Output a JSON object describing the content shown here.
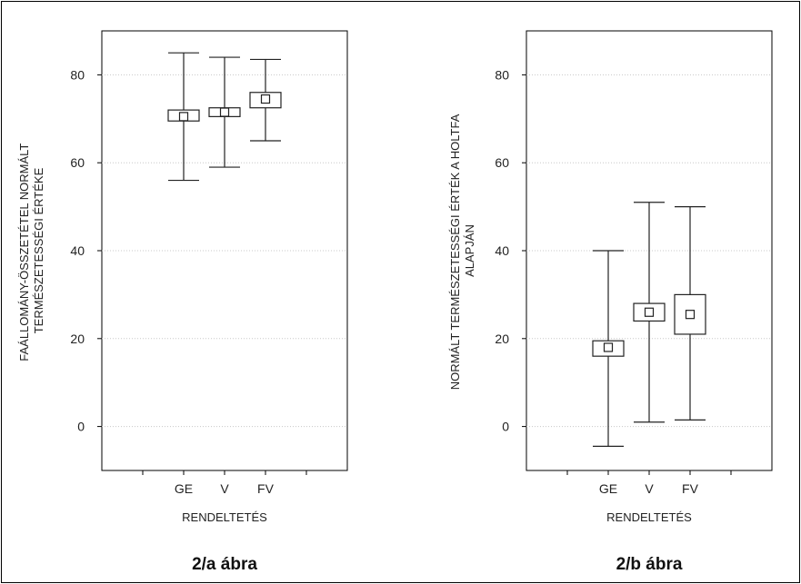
{
  "chart_data": [
    {
      "type": "boxplot",
      "xlabel": "RENDELTETÉS",
      "ylabel_lines": [
        "FAÁLLOMÁNY-ÖSSZETÉTEL NORMÁLT",
        "TERMÉSZETESSÉGI ÉRTÉKE"
      ],
      "caption": "2/a ábra",
      "ylim": [
        -10,
        90
      ],
      "yticks": [
        "0",
        "20",
        "40",
        "60",
        "80"
      ],
      "grid": true,
      "categories": [
        "GE",
        "V",
        "FV"
      ],
      "series": [
        {
          "category": "GE",
          "whisker_low": 56,
          "box_low": 69.5,
          "center": 70.5,
          "box_high": 72,
          "whisker_high": 85
        },
        {
          "category": "V",
          "whisker_low": 59,
          "box_low": 70.5,
          "center": 71.5,
          "box_high": 72.5,
          "whisker_high": 84
        },
        {
          "category": "FV",
          "whisker_low": 65,
          "box_low": 72.5,
          "center": 74.5,
          "box_high": 76,
          "whisker_high": 83.5
        }
      ]
    },
    {
      "type": "boxplot",
      "xlabel": "RENDELTETÉS",
      "ylabel_lines": [
        "NORMÁLT TERMÉSZETESSÉGI ÉRTÉK A HOLTFA",
        "ALAPJÁN"
      ],
      "caption": "2/b ábra",
      "ylim": [
        -10,
        90
      ],
      "yticks": [
        "0",
        "20",
        "40",
        "60",
        "80"
      ],
      "grid": true,
      "categories": [
        "GE",
        "V",
        "FV"
      ],
      "series": [
        {
          "category": "GE",
          "whisker_low": -4.5,
          "box_low": 16,
          "center": 18,
          "box_high": 19.5,
          "whisker_high": 40
        },
        {
          "category": "V",
          "whisker_low": 1,
          "box_low": 24,
          "center": 26,
          "box_high": 28,
          "whisker_high": 51
        },
        {
          "category": "FV",
          "whisker_low": 1.5,
          "box_low": 21,
          "center": 25.5,
          "box_high": 30,
          "whisker_high": 50
        }
      ]
    }
  ]
}
